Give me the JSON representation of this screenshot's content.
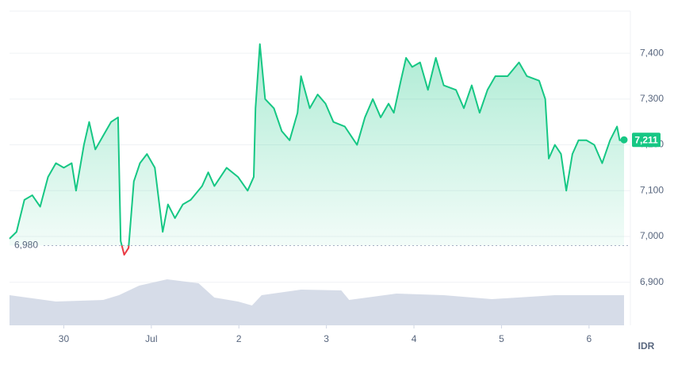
{
  "chart_data": {
    "type": "line",
    "currency": "IDR",
    "baseline": {
      "value": 6980,
      "label": "6,980"
    },
    "current": {
      "value": 7211,
      "label": "7,211"
    },
    "xlim": [
      -0.62,
      6.4
    ],
    "xticks": [
      {
        "value": 0,
        "label": "30"
      },
      {
        "value": 1,
        "label": "Jul"
      },
      2,
      3,
      4,
      5,
      6
    ],
    "ylim": [
      6806,
      7492
    ],
    "yticks": [
      {
        "value": 6900,
        "label": "6,900"
      },
      {
        "value": 7000,
        "label": "7,000"
      },
      {
        "value": 7100,
        "label": "7,100"
      },
      {
        "value": 7200,
        "label": "7,200"
      },
      {
        "value": 7300,
        "label": "7,300"
      },
      {
        "value": 7400,
        "label": "7,400"
      }
    ],
    "grid": true,
    "up_color": "#16c784",
    "down_color": "#ea3943",
    "x": [
      -0.62,
      -0.54,
      -0.45,
      -0.36,
      -0.27,
      -0.18,
      -0.09,
      0,
      0.09,
      0.14,
      0.23,
      0.29,
      0.36,
      0.45,
      0.54,
      0.62,
      0.65,
      0.69,
      0.74,
      0.8,
      0.87,
      0.95,
      1.04,
      1.13,
      1.19,
      1.27,
      1.36,
      1.45,
      1.58,
      1.65,
      1.72,
      1.86,
      1.99,
      2.1,
      2.17,
      2.19,
      2.24,
      2.3,
      2.4,
      2.49,
      2.58,
      2.67,
      2.71,
      2.81,
      2.9,
      2.99,
      3.08,
      3.21,
      3.35,
      3.44,
      3.53,
      3.62,
      3.71,
      3.77,
      3.85,
      3.91,
      3.98,
      4.07,
      4.16,
      4.25,
      4.34,
      4.48,
      4.57,
      4.66,
      4.75,
      4.84,
      4.93,
      5.07,
      5.2,
      5.29,
      5.43,
      5.5,
      5.54,
      5.61,
      5.68,
      5.74,
      5.81,
      5.88,
      5.97,
      6.06,
      6.15,
      6.24,
      6.32,
      6.35,
      6.4
    ],
    "values": [
      6995,
      7010,
      7080,
      7090,
      7065,
      7130,
      7160,
      7150,
      7160,
      7100,
      7200,
      7250,
      7190,
      7220,
      7250,
      7260,
      6990,
      6960,
      6975,
      7120,
      7160,
      7180,
      7150,
      7010,
      7070,
      7040,
      7070,
      7080,
      7110,
      7140,
      7110,
      7150,
      7130,
      7100,
      7130,
      7280,
      7420,
      7300,
      7280,
      7230,
      7210,
      7270,
      7350,
      7280,
      7310,
      7290,
      7250,
      7240,
      7200,
      7260,
      7300,
      7260,
      7290,
      7270,
      7340,
      7390,
      7370,
      7380,
      7320,
      7390,
      7330,
      7320,
      7280,
      7330,
      7270,
      7320,
      7350,
      7350,
      7380,
      7350,
      7340,
      7300,
      7170,
      7200,
      7180,
      7100,
      7180,
      7210,
      7210,
      7200,
      7160,
      7210,
      7240,
      7210,
      7211
    ],
    "volume": {
      "color": "#cfd6e4",
      "x": [
        -0.62,
        -0.09,
        0.45,
        0.63,
        0.86,
        1.18,
        1.54,
        1.72,
        1.99,
        2.15,
        2.26,
        2.71,
        3.17,
        3.26,
        3.8,
        4.34,
        4.89,
        5.61,
        6.4
      ],
      "values": [
        38,
        30,
        32,
        38,
        50,
        58,
        53,
        35,
        30,
        25,
        38,
        45,
        44,
        32,
        40,
        38,
        33,
        38,
        38
      ]
    }
  }
}
